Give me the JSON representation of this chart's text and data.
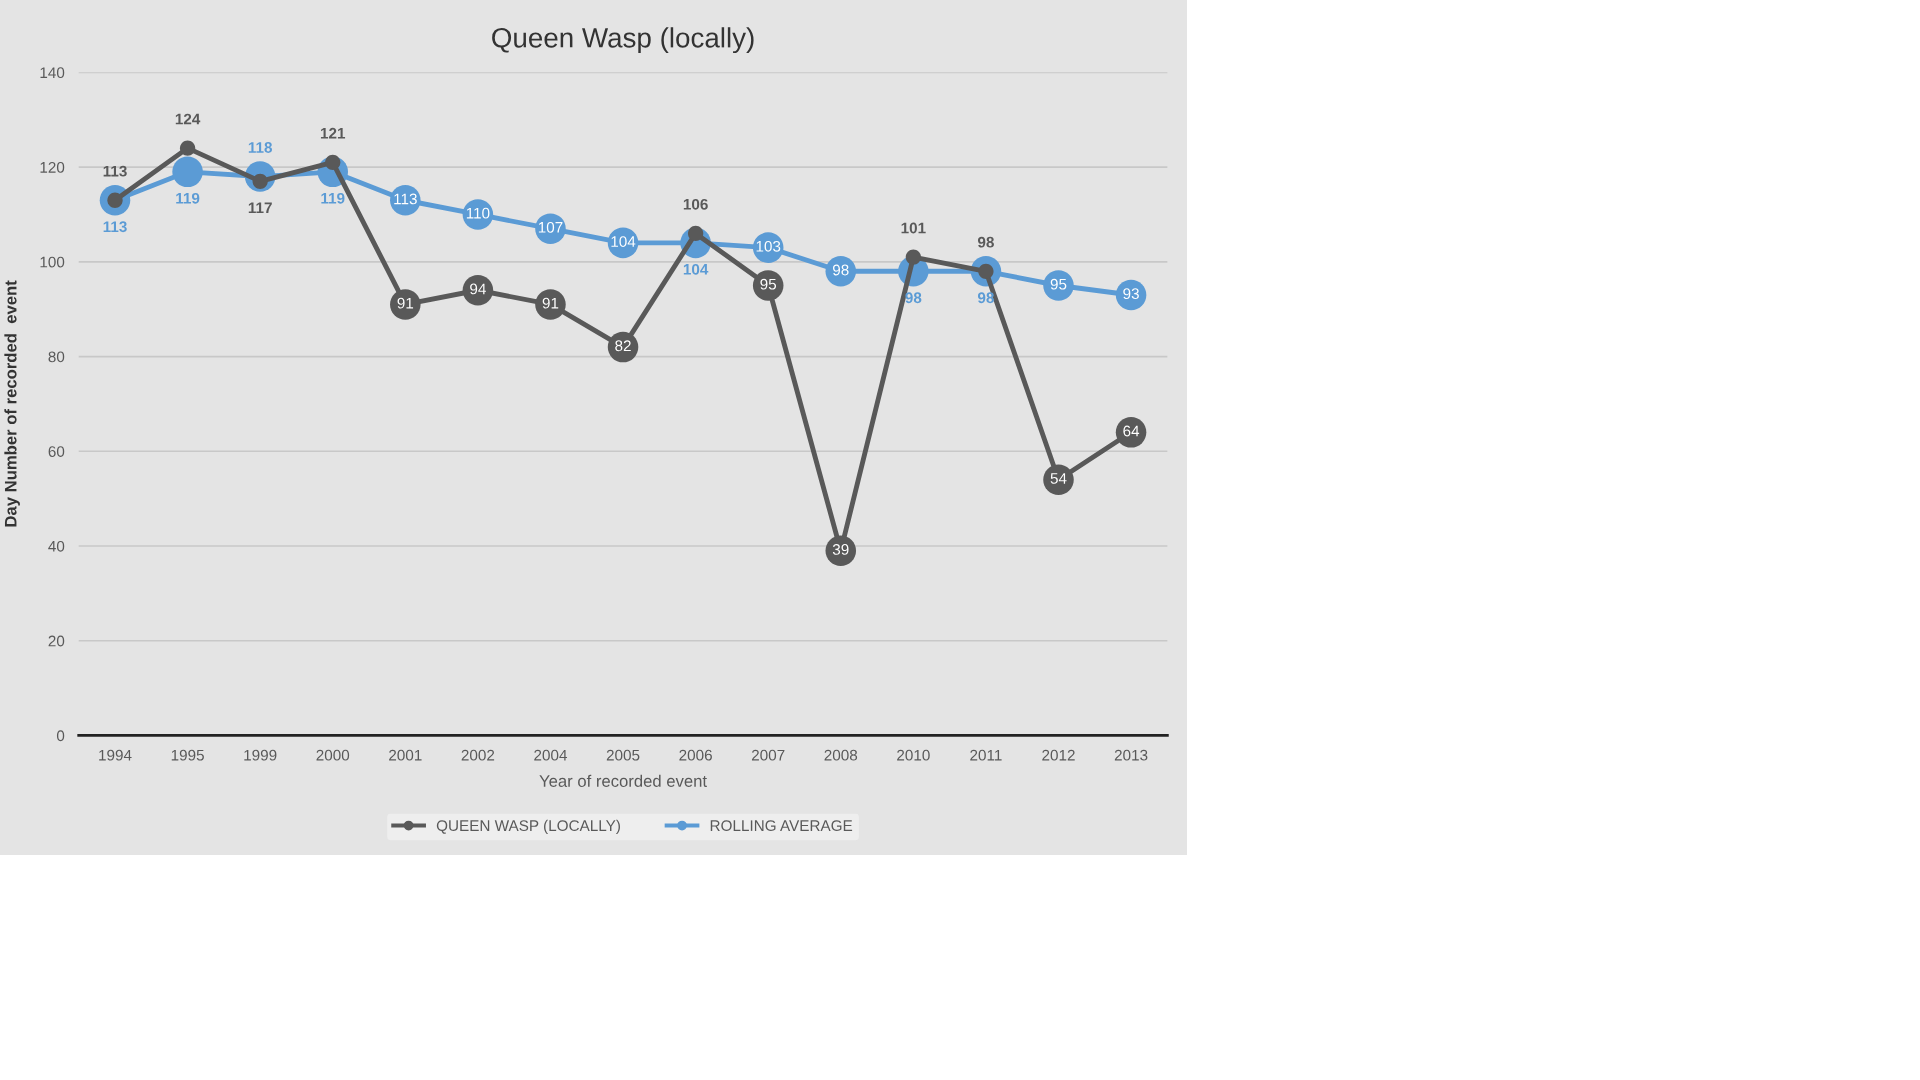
{
  "chart_data": {
    "type": "line",
    "title": "Queen Wasp (locally)",
    "xlabel": "Year of recorded event",
    "ylabel": "Day Number of recorded  event",
    "categories": [
      "1994",
      "1995",
      "1999",
      "2000",
      "2001",
      "2002",
      "2004",
      "2005",
      "2006",
      "2007",
      "2008",
      "2010",
      "2011",
      "2012",
      "2013"
    ],
    "series": [
      {
        "name": "QUEEN WASP (LOCALLY)",
        "color": "#595959",
        "values": [
          113,
          124,
          117,
          121,
          91,
          94,
          91,
          82,
          106,
          95,
          39,
          101,
          98,
          54,
          64
        ]
      },
      {
        "name": "ROLLING AVERAGE",
        "color": "#5b9bd5",
        "values": [
          113,
          119,
          118,
          119,
          113,
          110,
          107,
          104,
          104,
          103,
          98,
          98,
          98,
          95,
          93
        ]
      }
    ],
    "ylim": [
      0,
      140
    ],
    "yticks": [
      0,
      20,
      40,
      60,
      80,
      100,
      120,
      140
    ],
    "grid": "y",
    "legend": "bottom",
    "marker": "circle",
    "line_style": "solid",
    "data_labels": true
  }
}
